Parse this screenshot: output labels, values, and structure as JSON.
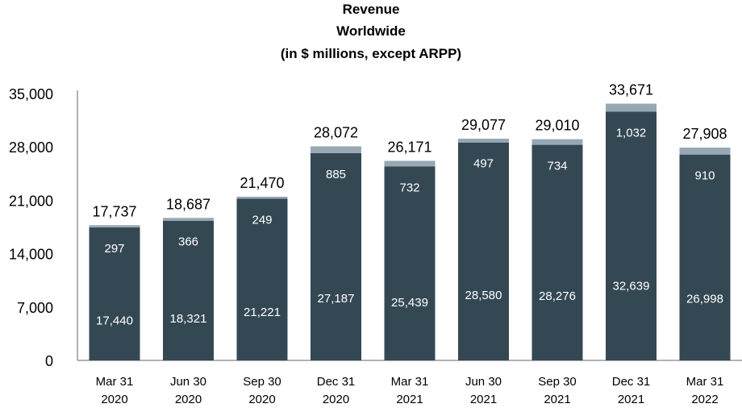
{
  "chart_data": {
    "type": "bar",
    "stacked": true,
    "title": [
      "Revenue",
      "Worldwide",
      "(in $ millions, except ARPP)"
    ],
    "xlabel": "",
    "ylabel": "",
    "ylim": [
      0,
      35000
    ],
    "yticks": [
      "0",
      "7,000",
      "14,000",
      "21,000",
      "28,000",
      "35,000"
    ],
    "ytick_values": [
      0,
      7000,
      14000,
      21000,
      28000,
      35000
    ],
    "grid": false,
    "categories": [
      [
        "Mar 31",
        "2020"
      ],
      [
        "Jun 30",
        "2020"
      ],
      [
        "Sep 30",
        "2020"
      ],
      [
        "Dec 31",
        "2020"
      ],
      [
        "Mar 31",
        "2021"
      ],
      [
        "Jun 30",
        "2021"
      ],
      [
        "Sep 30",
        "2021"
      ],
      [
        "Dec 31",
        "2021"
      ],
      [
        "Mar 31",
        "2022"
      ]
    ],
    "series": [
      {
        "name": "",
        "color": "#344854",
        "values": [
          17440,
          18321,
          21221,
          27187,
          25439,
          28580,
          28276,
          32639,
          26998
        ],
        "labels": [
          "17,440",
          "18,321",
          "21,221",
          "27,187",
          "25,439",
          "28,580",
          "28,276",
          "32,639",
          "26,998"
        ]
      },
      {
        "name": "",
        "color": "#97a8b4",
        "values": [
          297,
          366,
          249,
          885,
          732,
          497,
          734,
          1032,
          910
        ],
        "labels": [
          "297",
          "366",
          "249",
          "885",
          "732",
          "497",
          "734",
          "1,032",
          "910"
        ]
      }
    ],
    "totals": [
      "17,737",
      "18,687",
      "21,470",
      "28,072",
      "26,171",
      "29,077",
      "29,010",
      "33,671",
      "27,908"
    ]
  }
}
